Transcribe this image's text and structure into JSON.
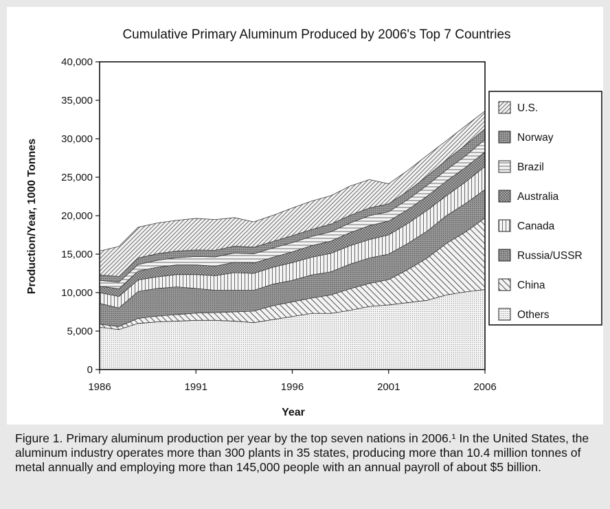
{
  "chart_data": {
    "type": "area",
    "stacked": true,
    "title": "Cumulative Primary Aluminum Produced by 2006's Top 7 Countries",
    "xlabel": "Year",
    "ylabel": "Production/Year, 1000 Tonnes",
    "xlim": [
      1986,
      2006
    ],
    "ylim": [
      0,
      40000
    ],
    "x_ticks": [
      "1986",
      "1991",
      "1996",
      "2001",
      "2006"
    ],
    "y_ticks": [
      "0",
      "5,000",
      "10,000",
      "15,000",
      "20,000",
      "25,000",
      "30,000",
      "35,000",
      "40,000"
    ],
    "x_tick_values": [
      1986,
      1991,
      1996,
      2001,
      2006
    ],
    "y_tick_values": [
      0,
      5000,
      10000,
      15000,
      20000,
      25000,
      30000,
      35000,
      40000
    ],
    "legend_position": "right",
    "grid": false,
    "x": [
      1986,
      1987,
      1988,
      1989,
      1990,
      1991,
      1992,
      1993,
      1994,
      1995,
      1996,
      1997,
      1998,
      1999,
      2000,
      2001,
      2002,
      2003,
      2004,
      2005,
      2006
    ],
    "series": [
      {
        "name": "Others",
        "pattern": "dots",
        "values": [
          5500,
          5200,
          6000,
          6200,
          6300,
          6400,
          6400,
          6300,
          6100,
          6500,
          6900,
          7300,
          7300,
          7700,
          8200,
          8400,
          8700,
          9000,
          9700,
          10100,
          10400
        ]
      },
      {
        "name": "China",
        "pattern": "back-diag",
        "values": [
          400,
          400,
          650,
          750,
          850,
          950,
          1000,
          1200,
          1500,
          1800,
          1900,
          2000,
          2400,
          2800,
          3000,
          3300,
          4300,
          5500,
          6700,
          7800,
          9300
        ]
      },
      {
        "name": "Russia/USSR",
        "pattern": "dark",
        "values": [
          2700,
          2400,
          3500,
          3600,
          3600,
          3200,
          2900,
          2800,
          2700,
          2800,
          2800,
          3000,
          3000,
          3200,
          3300,
          3300,
          3400,
          3500,
          3600,
          3700,
          3700
        ]
      },
      {
        "name": "Canada",
        "pattern": "vertical",
        "values": [
          1400,
          1500,
          1500,
          1500,
          1600,
          1800,
          1900,
          2300,
          2200,
          2200,
          2300,
          2300,
          2400,
          2400,
          2400,
          2500,
          2600,
          2700,
          2600,
          2800,
          3000
        ]
      },
      {
        "name": "Australia",
        "pattern": "grid",
        "values": [
          850,
          1000,
          1150,
          1250,
          1250,
          1250,
          1250,
          1350,
          1350,
          1300,
          1400,
          1500,
          1600,
          1700,
          1800,
          1800,
          1800,
          1850,
          1900,
          1900,
          1900
        ]
      },
      {
        "name": "Brazil",
        "pattern": "horizontal",
        "values": [
          750,
          850,
          850,
          900,
          950,
          1100,
          1200,
          1200,
          1200,
          1200,
          1200,
          1200,
          1200,
          1250,
          1300,
          1200,
          1300,
          1400,
          1450,
          1500,
          1600
        ]
      },
      {
        "name": "Norway",
        "pattern": "dark",
        "values": [
          700,
          750,
          850,
          850,
          850,
          850,
          850,
          900,
          850,
          850,
          900,
          900,
          1000,
          1000,
          1000,
          1050,
          1100,
          1200,
          1300,
          1400,
          1400
        ]
      },
      {
        "name": "U.S.",
        "pattern": "forward-diag",
        "values": [
          3100,
          3900,
          4000,
          4000,
          4000,
          4100,
          4000,
          3700,
          3300,
          3400,
          3600,
          3700,
          3700,
          3800,
          3700,
          2600,
          2700,
          2700,
          2500,
          2500,
          2300
        ]
      }
    ]
  },
  "caption": {
    "text": "Figure 1. Primary aluminum production per year by the top seven nations in 2006.¹ In the United States, the aluminum industry operates more than 300 plants in 35 states, producing more than 10.4 million tonnes of metal annually and employing more than 145,000 people with an annual payroll of about $5 billion."
  }
}
